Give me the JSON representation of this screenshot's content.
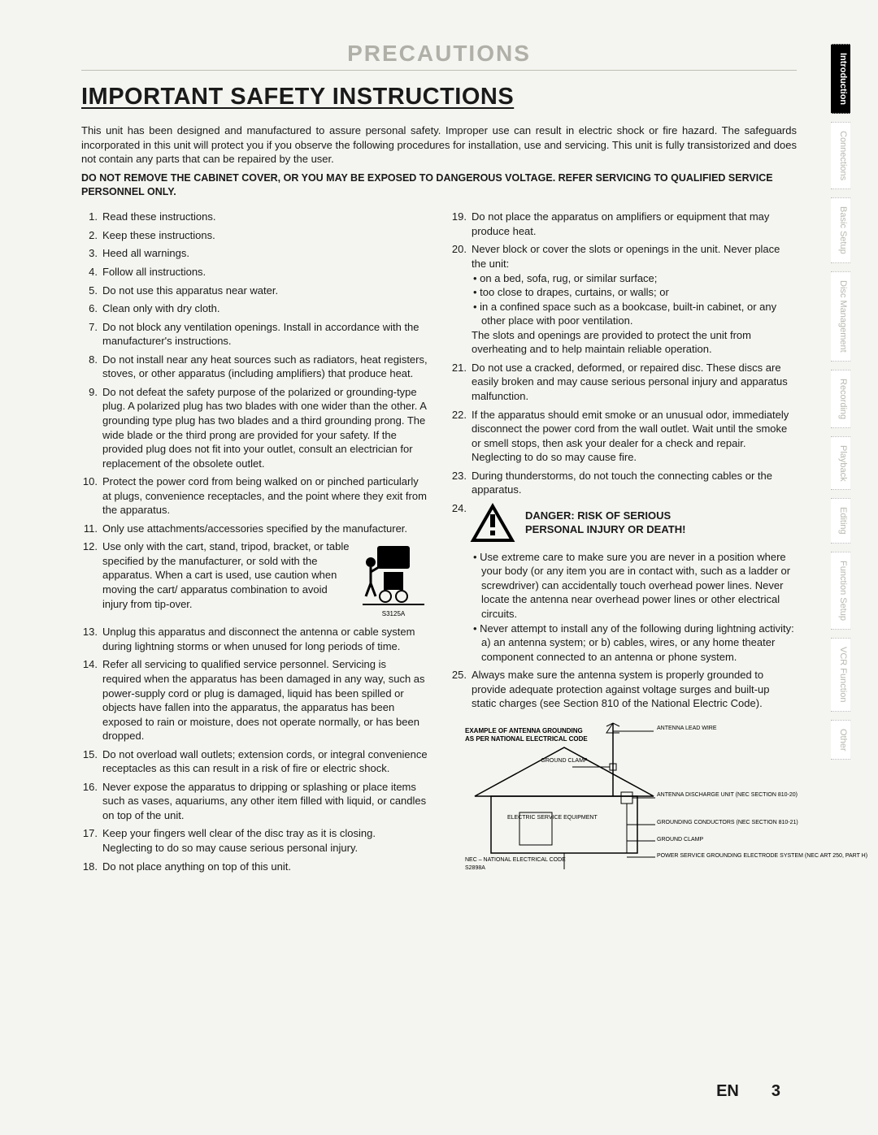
{
  "header": {
    "section": "PRECAUTIONS",
    "title": "IMPORTANT SAFETY INSTRUCTIONS"
  },
  "intro": "This unit has been designed and manufactured to assure personal safety. Improper use can result in electric shock or fire hazard. The safeguards incorporated in this unit will protect you if you observe the following procedures for installation, use and servicing. This unit is fully transistorized and does not contain any parts that can be repaired by the user.",
  "warning": "DO NOT REMOVE THE CABINET COVER, OR YOU MAY BE EXPOSED TO DANGEROUS VOLTAGE. REFER SERVICING TO QUALIFIED SERVICE PERSONNEL ONLY.",
  "left_items": [
    "Read these instructions.",
    "Keep these instructions.",
    "Heed all warnings.",
    "Follow all instructions.",
    "Do not use this apparatus near water.",
    "Clean only with dry cloth.",
    "Do not block any ventilation openings. Install in accordance with the manufacturer's instructions.",
    "Do not install near any heat sources such as radiators, heat registers, stoves, or other apparatus (including amplifiers) that produce heat.",
    "Do not defeat the safety purpose of the polarized or grounding-type plug. A polarized plug has two blades with one wider than the other. A grounding type plug has two blades and a third grounding prong. The wide blade or the third prong are provided for your safety. If the provided plug does not fit into your outlet, consult an electrician for replacement of the obsolete outlet.",
    "Protect the power cord from being walked on or pinched particularly at plugs, convenience receptacles, and the point where they exit from the apparatus.",
    "Only use attachments/accessories specified by the manufacturer.",
    "Use only with the cart, stand, tripod, bracket, or table specified by the manufacturer, or sold with the apparatus. When a cart is used, use caution when moving the cart/ apparatus combination to avoid injury from tip-over.",
    "Unplug this apparatus and disconnect the antenna or cable system during lightning storms or when unused for long periods of time.",
    "Refer all servicing to qualified service personnel. Servicing is required when the apparatus has been damaged in any way, such as power-supply cord or plug is damaged, liquid has been spilled or objects have fallen into the apparatus, the apparatus has been exposed to rain or moisture, does not operate normally, or has been dropped.",
    "Do not overload wall outlets; extension cords, or integral convenience receptacles as this can result in a risk of fire or electric shock.",
    "Never expose the apparatus to dripping or splashing or place items such as vases, aquariums, any other item filled with liquid, or candles on top of the unit.",
    "Keep your fingers well clear of the disc tray as it is closing. Neglecting to do so may cause serious personal injury.",
    "Do not place anything on top of this unit."
  ],
  "cart_label": "S3125A",
  "right_items_1": [
    "Do not place the apparatus on amplifiers or equipment that may produce heat."
  ],
  "item20": {
    "lead": "Never block or cover the slots or openings in the unit. Never place the unit:",
    "subs": [
      "on a bed, sofa, rug, or similar surface;",
      "too close to drapes, curtains, or walls; or",
      "in a confined space such as a bookcase, built-in cabinet, or any other place with poor ventilation."
    ],
    "tail": "The slots and openings are provided to protect the unit from overheating and to help maintain reliable operation."
  },
  "right_items_2": [
    "Do not use a cracked, deformed, or repaired disc. These discs are easily broken and may cause serious personal injury and apparatus malfunction.",
    "If the apparatus should emit smoke or an unusual odor, immediately disconnect the power cord from the wall outlet. Wait until the smoke or smell stops, then ask your dealer for a check and repair. Neglecting to do so may cause fire.",
    "During thunderstorms, do not touch the connecting cables or the apparatus."
  ],
  "danger": {
    "line1": "DANGER: RISK OF SERIOUS",
    "line2": "PERSONAL INJURY OR DEATH!"
  },
  "item24_subs": [
    "Use extreme care to make sure you are never in a position where your body (or any item you are in contact with, such as a ladder or screwdriver) can accidentally touch overhead power lines. Never locate the antenna near overhead power lines or other electrical circuits.",
    "Never attempt to install any of the following during lightning activity: a) an antenna system; or b) cables, wires, or any home theater component connected to an antenna or phone system."
  ],
  "item25": "Always make sure the antenna system is properly grounded to provide adequate protection against voltage surges and built-up static charges (see Section 810 of the National Electric Code).",
  "antenna": {
    "title1": "EXAMPLE OF ANTENNA GROUNDING",
    "title2": "AS PER NATIONAL ELECTRICAL CODE",
    "labels": {
      "antenna_lead": "ANTENNA LEAD WIRE",
      "ground_clamp": "GROUND CLAMP",
      "discharge": "ANTENNA DISCHARGE UNIT (NEC SECTION 810-20)",
      "equip": "ELECTRIC SERVICE EQUIPMENT",
      "conductors": "GROUNDING CONDUCTORS (NEC SECTION 810-21)",
      "ground_clamp2": "GROUND CLAMP",
      "electrode": "POWER SERVICE GROUNDING ELECTRODE SYSTEM (NEC ART 250, PART H)",
      "nec": "NEC – NATIONAL ELECTRICAL CODE",
      "code": "S2898A"
    }
  },
  "sidebar": [
    "Introduction",
    "Connections",
    "Basic Setup",
    "Disc Management",
    "Recording",
    "Playback",
    "Editing",
    "Function Setup",
    "VCR Function",
    "Other"
  ],
  "footer": {
    "lang": "EN",
    "page": "3"
  }
}
